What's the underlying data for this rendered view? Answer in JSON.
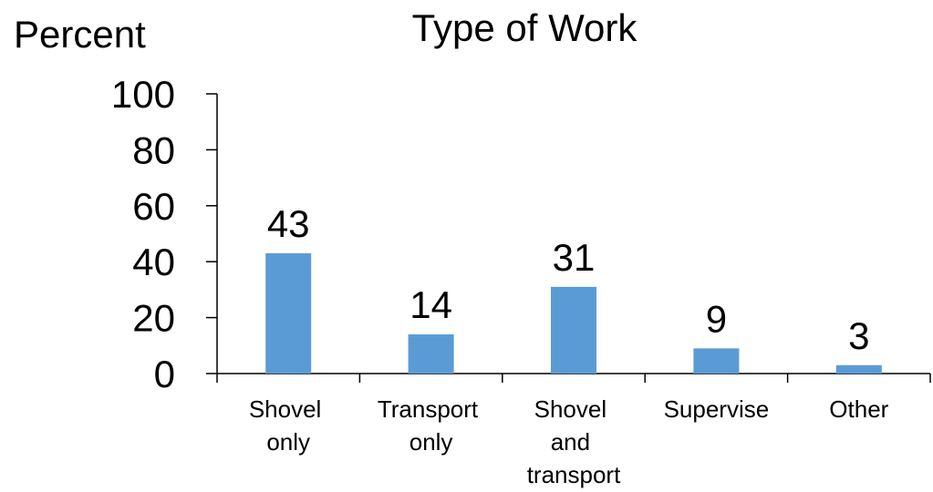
{
  "chart_data": {
    "type": "bar",
    "title": "Type of Work",
    "y_label": "Percent",
    "categories": [
      "Shovel only",
      "Transport only",
      "Shovel and transport",
      "Supervise",
      "Other"
    ],
    "values": [
      43,
      14,
      31,
      9,
      3
    ],
    "color": "#5b9bd5",
    "ylim": [
      0,
      100
    ],
    "yticks": [
      0,
      20,
      40,
      60,
      80,
      100
    ],
    "grid": false,
    "data_labels": true
  }
}
